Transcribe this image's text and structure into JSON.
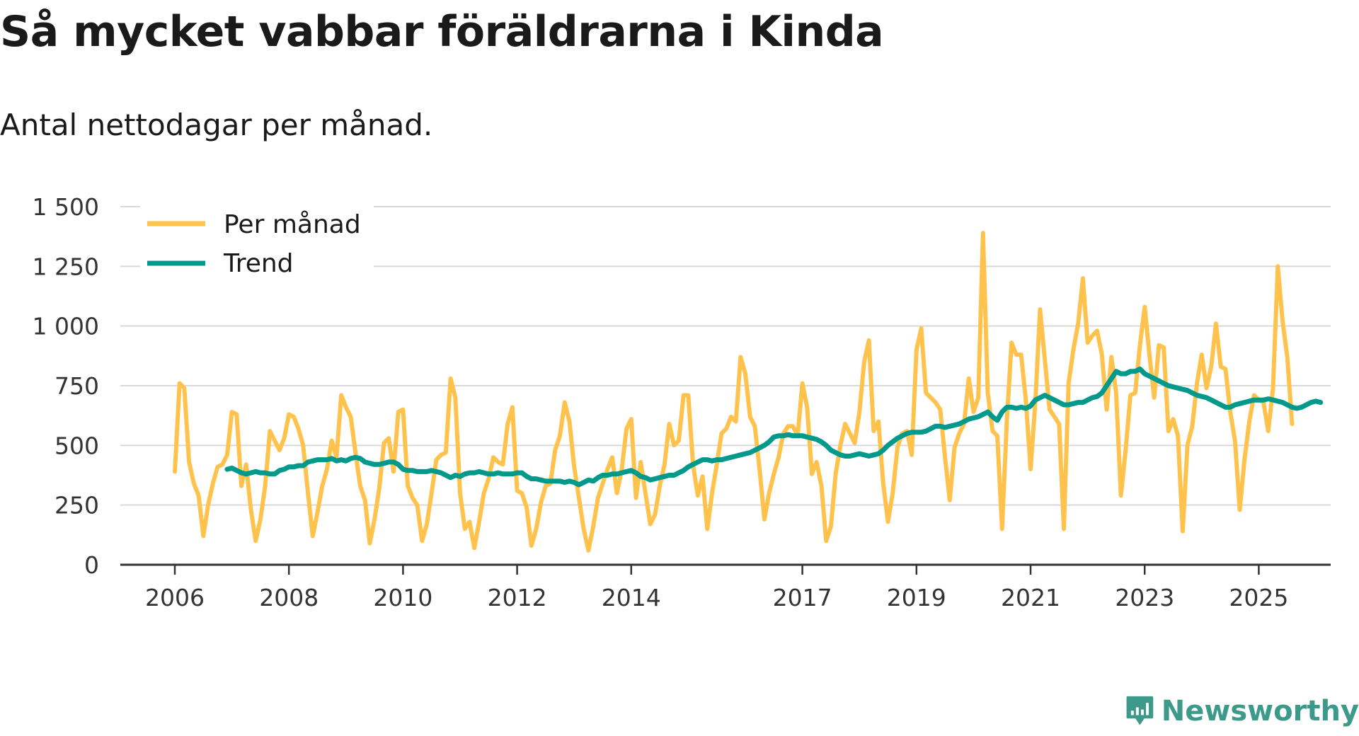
{
  "title": "Så mycket vabbar föräldrarna i Kinda",
  "subtitle": "Antal nettodagar per månad.",
  "brand": {
    "name": "Newsworthy",
    "icon": "newsworthy-logo-icon",
    "color": "#3d9a8b"
  },
  "colors": {
    "monthly": "#ffc34d",
    "trend": "#00998c",
    "grid": "#d9d9d9",
    "axis": "#333333"
  },
  "chart_data": {
    "type": "line",
    "title": "Så mycket vabbar föräldrarna i Kinda",
    "subtitle": "Antal nettodagar per månad.",
    "xlabel": "",
    "ylabel": "",
    "xlim": [
      2006.0,
      2026.33
    ],
    "ylim": [
      0,
      1500
    ],
    "grid": true,
    "legend_position": "top-left",
    "x_ticks": [
      2006,
      2008,
      2010,
      2012,
      2014,
      2017,
      2019,
      2021,
      2023,
      2025
    ],
    "y_ticks": [
      0,
      250,
      500,
      750,
      1000,
      1250,
      1500
    ],
    "y_tick_labels": [
      "0",
      "250",
      "500",
      "750",
      "1 000",
      "1 250",
      "1 500"
    ],
    "series": [
      {
        "name": "Per månad",
        "color": "#ffc34d",
        "x_start": 2006.0,
        "x_step": 0.083333,
        "values": [
          390,
          760,
          740,
          430,
          340,
          290,
          120,
          250,
          340,
          410,
          420,
          460,
          640,
          630,
          330,
          420,
          230,
          100,
          190,
          330,
          560,
          520,
          480,
          530,
          630,
          620,
          570,
          500,
          300,
          120,
          220,
          330,
          400,
          520,
          450,
          710,
          660,
          620,
          470,
          330,
          270,
          90,
          190,
          320,
          510,
          530,
          390,
          640,
          650,
          330,
          280,
          250,
          100,
          170,
          300,
          440,
          460,
          470,
          780,
          700,
          300,
          150,
          180,
          70,
          180,
          300,
          360,
          450,
          430,
          420,
          590,
          660,
          310,
          300,
          240,
          80,
          150,
          260,
          330,
          340,
          480,
          540,
          680,
          600,
          410,
          280,
          150,
          60,
          160,
          280,
          340,
          400,
          450,
          300,
          400,
          570,
          610,
          280,
          430,
          300,
          170,
          210,
          330,
          420,
          590,
          500,
          520,
          710,
          710,
          420,
          290,
          370,
          150,
          300,
          420,
          550,
          570,
          620,
          600,
          870,
          800,
          620,
          580,
          400,
          190,
          300,
          380,
          450,
          550,
          580,
          580,
          540,
          760,
          660,
          380,
          430,
          330,
          100,
          160,
          380,
          500,
          590,
          550,
          510,
          640,
          850,
          940,
          560,
          600,
          340,
          180,
          300,
          490,
          550,
          560,
          460,
          900,
          990,
          720,
          700,
          680,
          650,
          450,
          270,
          490,
          550,
          590,
          780,
          640,
          700,
          1390,
          720,
          560,
          540,
          150,
          600,
          930,
          880,
          880,
          690,
          400,
          680,
          1070,
          860,
          650,
          620,
          590,
          150,
          760,
          900,
          1010,
          1200,
          930,
          960,
          980,
          880,
          650,
          870,
          720,
          290,
          480,
          710,
          720,
          920,
          1080,
          880,
          700,
          920,
          910,
          560,
          610,
          540,
          140,
          500,
          580,
          760,
          880,
          740,
          830,
          1010,
          830,
          820,
          640,
          520,
          230,
          440,
          600,
          710,
          690,
          680,
          560,
          740,
          1250,
          1020,
          870,
          590
        ]
      },
      {
        "name": "Trend",
        "color": "#00998c",
        "x_start": 2006.917,
        "x_step": 0.083333,
        "values": [
          400,
          405,
          395,
          385,
          380,
          385,
          390,
          385,
          385,
          380,
          380,
          395,
          400,
          410,
          410,
          415,
          415,
          430,
          435,
          440,
          440,
          440,
          445,
          435,
          440,
          435,
          445,
          450,
          445,
          430,
          425,
          420,
          420,
          425,
          430,
          430,
          420,
          400,
          395,
          395,
          390,
          390,
          390,
          395,
          390,
          385,
          375,
          365,
          375,
          370,
          380,
          385,
          385,
          390,
          385,
          380,
          380,
          385,
          380,
          380,
          380,
          385,
          385,
          370,
          360,
          360,
          355,
          350,
          350,
          350,
          350,
          345,
          350,
          345,
          335,
          345,
          355,
          350,
          365,
          375,
          375,
          380,
          380,
          385,
          390,
          395,
          385,
          370,
          365,
          355,
          360,
          365,
          370,
          375,
          375,
          385,
          395,
          410,
          420,
          430,
          440,
          440,
          435,
          440,
          440,
          445,
          450,
          455,
          460,
          465,
          470,
          480,
          490,
          500,
          515,
          535,
          540,
          540,
          545,
          540,
          540,
          540,
          535,
          530,
          525,
          515,
          500,
          480,
          470,
          460,
          455,
          455,
          460,
          465,
          460,
          455,
          460,
          465,
          480,
          500,
          515,
          530,
          540,
          550,
          555,
          555,
          555,
          560,
          570,
          580,
          580,
          575,
          580,
          585,
          590,
          600,
          610,
          615,
          620,
          630,
          640,
          620,
          605,
          640,
          660,
          660,
          655,
          660,
          655,
          665,
          690,
          700,
          710,
          700,
          690,
          680,
          670,
          670,
          675,
          680,
          680,
          690,
          700,
          705,
          720,
          750,
          780,
          810,
          800,
          800,
          810,
          810,
          820,
          800,
          790,
          780,
          770,
          760,
          750,
          745,
          740,
          735,
          730,
          720,
          710,
          705,
          700,
          690,
          680,
          670,
          660,
          660,
          670,
          675,
          680,
          685,
          690,
          690,
          690,
          695,
          690,
          685,
          680,
          670,
          660,
          655,
          660,
          670,
          680,
          685,
          680
        ]
      }
    ]
  }
}
